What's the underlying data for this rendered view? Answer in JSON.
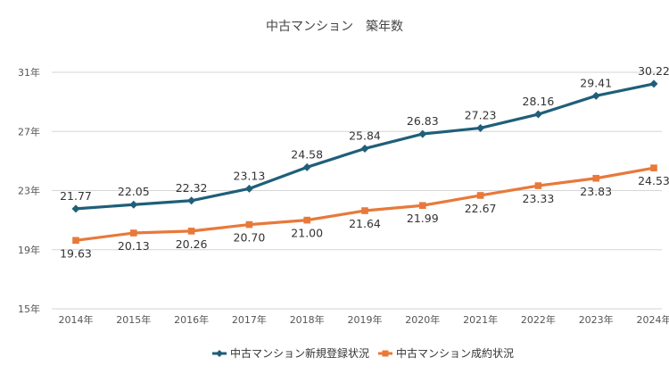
{
  "chart_data": {
    "type": "line",
    "title": "中古マンション　築年数",
    "categories": [
      "2014年",
      "2015年",
      "2016年",
      "2017年",
      "2018年",
      "2019年",
      "2020年",
      "2021年",
      "2022年",
      "2023年",
      "2024年"
    ],
    "y_ticks": [
      "15年",
      "19年",
      "23年",
      "27年",
      "31年"
    ],
    "ylim": [
      15,
      31
    ],
    "grid": true,
    "legend_position": "bottom",
    "series": [
      {
        "name": "中古マンション新規登録状況",
        "color": "#1f5f7a",
        "marker": "diamond",
        "label_position": "above",
        "values": [
          21.77,
          22.05,
          22.32,
          23.13,
          24.58,
          25.84,
          26.83,
          27.23,
          28.16,
          29.41,
          30.22
        ],
        "labels": [
          "21.77",
          "22.05",
          "22.32",
          "23.13",
          "24.58",
          "25.84",
          "26.83",
          "27.23",
          "28.16",
          "29.41",
          "30.22"
        ]
      },
      {
        "name": "中古マンション成約状況",
        "color": "#e8793a",
        "marker": "square",
        "label_position": "below",
        "values": [
          19.63,
          20.13,
          20.26,
          20.7,
          21.0,
          21.64,
          21.99,
          22.67,
          23.33,
          23.83,
          24.53
        ],
        "labels": [
          "19.63",
          "20.13",
          "20.26",
          "20.70",
          "21.00",
          "21.64",
          "21.99",
          "22.67",
          "23.33",
          "23.83",
          "24.53"
        ]
      }
    ]
  }
}
